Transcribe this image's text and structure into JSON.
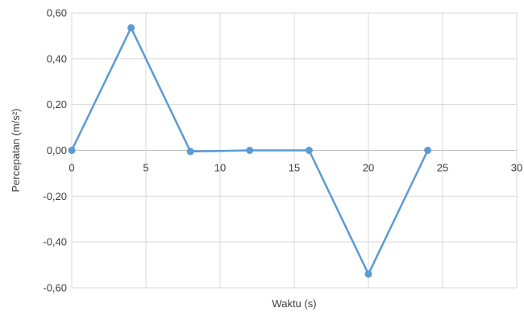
{
  "chart_data": {
    "type": "line",
    "title": "",
    "xlabel": "Waktu (s)",
    "ylabel": "Percepatan (m/s²)",
    "xlim": [
      0,
      30
    ],
    "ylim": [
      -0.6,
      0.6
    ],
    "xticks": [
      0,
      5,
      10,
      15,
      20,
      25,
      30
    ],
    "xtick_labels": [
      "0",
      "5",
      "10",
      "15",
      "20",
      "25",
      "30"
    ],
    "yticks": [
      0.6,
      0.4,
      0.2,
      0.0,
      -0.2,
      -0.4,
      -0.6
    ],
    "ytick_labels": [
      "0,60",
      "0,40",
      "0,20",
      "0,00",
      "-0,20",
      "-0,40",
      "-0,60"
    ],
    "grid": true,
    "series": [
      {
        "color": "#5b9bd5",
        "x": [
          0,
          4,
          8,
          12,
          16,
          20,
          24
        ],
        "y": [
          0.0,
          0.535,
          -0.005,
          0.0,
          0.0,
          -0.54,
          0.0
        ]
      }
    ]
  }
}
